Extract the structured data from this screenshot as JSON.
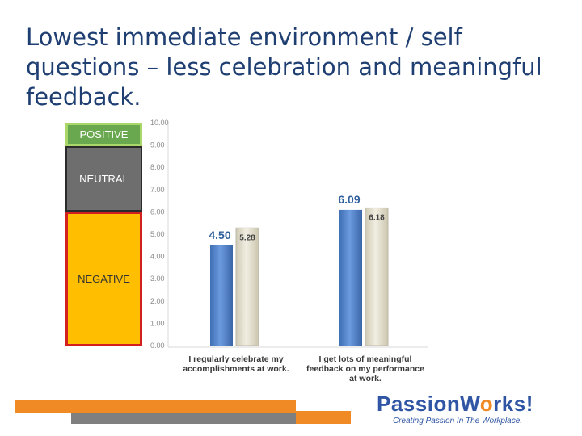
{
  "slide": {
    "title": "Lowest immediate environment / self questions – less celebration and meaningful feedback."
  },
  "zones": {
    "positive": "POSITIVE",
    "neutral": "NEUTRAL",
    "negative": "NEGATIVE"
  },
  "chart_data": {
    "type": "bar",
    "categories": [
      [
        "I regularly celebrate my",
        "accomplishments at work."
      ],
      [
        "I get lots of meaningful",
        "feedback on my performance",
        "at work."
      ]
    ],
    "series": [
      {
        "values": [
          4.5,
          6.09
        ],
        "labels": [
          "4.50",
          "6.09"
        ],
        "color": "#4f81c7"
      },
      {
        "values": [
          5.28,
          6.18
        ],
        "labels": [
          "5.28",
          "6.18"
        ],
        "color": "#ddd9c4"
      }
    ],
    "ylim": [
      0,
      10
    ],
    "yticks": [
      "0.00",
      "1.00",
      "2.00",
      "3.00",
      "4.00",
      "5.00",
      "6.00",
      "7.00",
      "8.00",
      "9.00",
      "10.00"
    ],
    "title": "",
    "xlabel": "",
    "ylabel": ""
  },
  "logo": {
    "name_part1": "PassionW",
    "name_part2": "rks!",
    "tagline": "Creating Passion In The Workplace."
  }
}
